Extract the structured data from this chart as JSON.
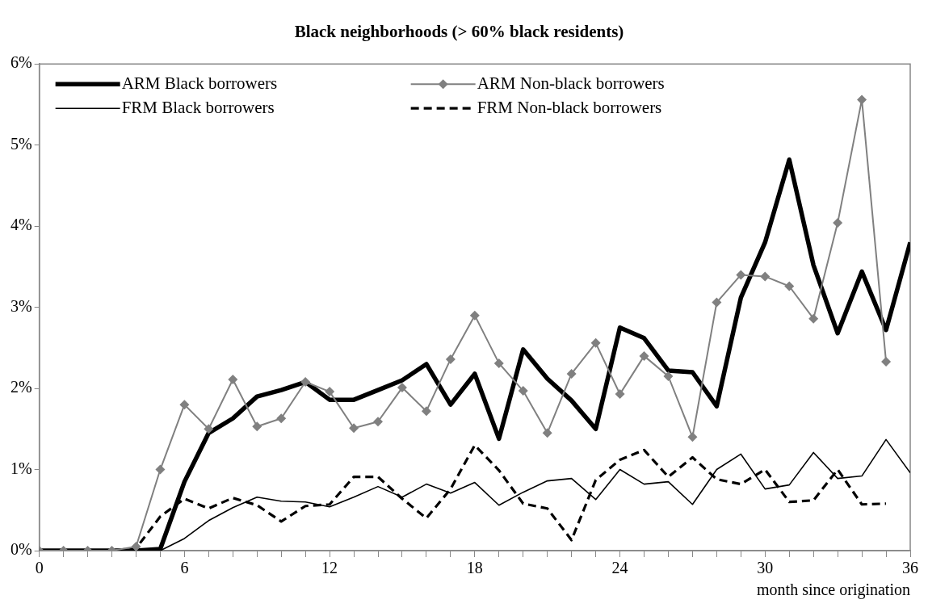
{
  "chart_data": {
    "type": "line",
    "title": "Black neighborhoods (> 60% black residents)",
    "xlabel": "month since origination",
    "x": [
      0,
      1,
      2,
      3,
      4,
      5,
      6,
      7,
      8,
      9,
      10,
      11,
      12,
      13,
      14,
      15,
      16,
      17,
      18,
      19,
      20,
      21,
      22,
      23,
      24,
      25,
      26,
      27,
      28,
      29,
      30,
      31,
      32,
      33,
      34,
      35,
      36
    ],
    "series": [
      {
        "name": "ARM Black borrowers",
        "color": "#000000",
        "line_style": "solid",
        "marker": "none",
        "values": [
          0,
          0,
          0,
          0,
          0,
          0.02,
          0.85,
          1.45,
          1.63,
          1.9,
          1.98,
          2.08,
          1.86,
          1.86,
          1.98,
          2.1,
          2.3,
          1.8,
          2.18,
          1.38,
          2.48,
          2.12,
          1.85,
          1.5,
          2.75,
          2.62,
          2.22,
          2.2,
          1.78,
          3.12,
          3.8,
          4.82,
          3.52,
          2.68,
          3.44,
          2.72,
          3.8
        ]
      },
      {
        "name": "ARM Non-black borrowers",
        "color": "#808080",
        "line_style": "solid",
        "marker": "diamond",
        "values": [
          0,
          0,
          0,
          0,
          0.05,
          1.0,
          1.8,
          1.5,
          2.11,
          1.53,
          1.63,
          2.08,
          1.96,
          1.51,
          1.59,
          2.01,
          1.72,
          2.36,
          2.9,
          2.31,
          1.97,
          1.45,
          2.18,
          2.56,
          1.93,
          2.4,
          2.15,
          1.4,
          3.06,
          3.4,
          3.38,
          3.26,
          2.86,
          4.04,
          5.56,
          2.33,
          null
        ]
      },
      {
        "name": "FRM Black borrowers",
        "color": "#000000",
        "line_style": "solid",
        "marker": "none",
        "values": [
          0,
          0,
          0,
          0,
          0,
          0,
          0.15,
          0.37,
          0.53,
          0.66,
          0.61,
          0.6,
          0.54,
          0.66,
          0.79,
          0.66,
          0.82,
          0.71,
          0.84,
          0.56,
          0.72,
          0.86,
          0.89,
          0.63,
          1.0,
          0.82,
          0.85,
          0.57,
          1.0,
          1.19,
          0.76,
          0.81,
          1.21,
          0.89,
          0.92,
          1.37,
          0.96
        ]
      },
      {
        "name": "FRM Non-black borrowers",
        "color": "#000000",
        "line_style": "dashed",
        "marker": "none",
        "values": [
          0,
          0,
          0,
          0,
          0.03,
          0.42,
          0.64,
          0.52,
          0.65,
          0.56,
          0.36,
          0.55,
          0.57,
          0.91,
          0.91,
          0.64,
          0.4,
          0.76,
          1.3,
          0.99,
          0.58,
          0.52,
          0.13,
          0.87,
          1.12,
          1.24,
          0.91,
          1.15,
          0.88,
          0.82,
          1.0,
          0.6,
          0.62,
          1.0,
          0.57,
          0.58,
          null
        ]
      }
    ],
    "xlim": [
      0,
      36
    ],
    "xticks": [
      0,
      {
        "value": 1,
        "label": null
      },
      {
        "value": 2,
        "label": null
      },
      {
        "value": 3,
        "label": null
      },
      {
        "value": 4,
        "label": null
      },
      {
        "value": 5,
        "label": null
      },
      6,
      {
        "value": 7,
        "label": null
      },
      {
        "value": 8,
        "label": null
      },
      {
        "value": 9,
        "label": null
      },
      {
        "value": 10,
        "label": null
      },
      {
        "value": 11,
        "label": null
      },
      12,
      {
        "value": 13,
        "label": null
      },
      {
        "value": 14,
        "label": null
      },
      {
        "value": 15,
        "label": null
      },
      {
        "value": 16,
        "label": null
      },
      {
        "value": 17,
        "label": null
      },
      18,
      {
        "value": 19,
        "label": null
      },
      {
        "value": 20,
        "label": null
      },
      {
        "value": 21,
        "label": null
      },
      {
        "value": 22,
        "label": null
      },
      {
        "value": 23,
        "label": null
      },
      24,
      {
        "value": 25,
        "label": null
      },
      {
        "value": 26,
        "label": null
      },
      {
        "value": 27,
        "label": null
      },
      {
        "value": 28,
        "label": null
      },
      {
        "value": 29,
        "label": null
      },
      30,
      {
        "value": 31,
        "label": null
      },
      {
        "value": 32,
        "label": null
      },
      {
        "value": 33,
        "label": null
      },
      {
        "value": 34,
        "label": null
      },
      {
        "value": 35,
        "label": null
      },
      36
    ],
    "ylim": [
      0,
      6
    ],
    "yticks": [
      {
        "value": 0,
        "label": "0%"
      },
      {
        "value": 1,
        "label": "1%"
      },
      {
        "value": 2,
        "label": "2%"
      },
      {
        "value": 3,
        "label": "3%"
      },
      {
        "value": 4,
        "label": "4%"
      },
      {
        "value": 5,
        "label": "5%"
      },
      {
        "value": 6,
        "label": "6%"
      }
    ],
    "grid": false,
    "legend": "top left"
  }
}
